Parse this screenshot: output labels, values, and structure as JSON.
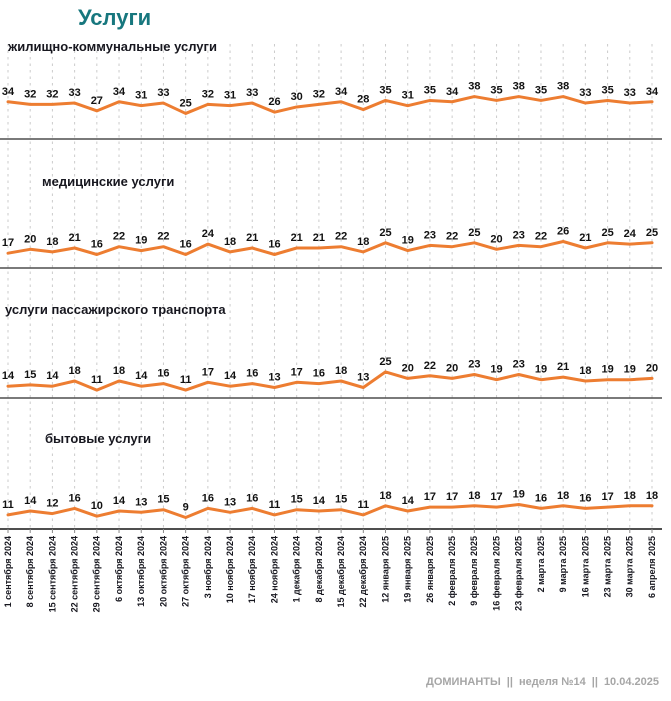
{
  "page": {
    "title": "Услуги"
  },
  "footer": {
    "brand": "ДОМИНАНТЫ",
    "sep": "||",
    "week": "неделя №14",
    "date": "10.04.2025"
  },
  "colors": {
    "accent_orange": "#ED7D31",
    "title_teal": "#17777E",
    "text_dark": "#17171F",
    "label_black": "#111111",
    "footer_gray": "#A6A6A6",
    "gridline_gray": "#CBCBCB",
    "axis_gray": "#4F4F4F",
    "tick_gray": "#8A8A8A"
  },
  "chart_data": [
    {
      "type": "line",
      "title": "жилищно-коммунальные услуги",
      "ylim": [
        25,
        38
      ],
      "grid": true,
      "legend": false,
      "categories": [
        "1 сентября 2024",
        "8 сентября 2024",
        "15 сентября 2024",
        "22 сентября 2024",
        "29 сентября 2024",
        "6 октября 2024",
        "13 октября 2024",
        "20 октября 2024",
        "27 октября 2024",
        "3 ноября 2024",
        "10 ноября 2024",
        "17 ноября 2024",
        "24 ноября 2024",
        "1 декабря 2024",
        "8 декабря 2024",
        "15 декабря 2024",
        "22 декабря 2024",
        "12 января 2025",
        "19 января 2025",
        "26 января 2025",
        "2 февраля 2025",
        "9 февраля 2025",
        "16 февраля 2025",
        "23 февраля 2025",
        "2 марта 2025",
        "9 марта 2025",
        "16 марта 2025",
        "23 марта 2025",
        "30 марта 2025",
        "6 апреля 2025"
      ],
      "values": [
        34,
        32,
        32,
        33,
        27,
        34,
        31,
        33,
        25,
        32,
        31,
        33,
        26,
        30,
        32,
        34,
        28,
        35,
        31,
        35,
        34,
        38,
        35,
        38,
        35,
        38,
        33,
        35,
        33,
        34
      ]
    },
    {
      "type": "line",
      "title": "медицинские услуги",
      "ylim": [
        16,
        26
      ],
      "grid": true,
      "legend": false,
      "categories": [
        "1 сентября 2024",
        "8 сентября 2024",
        "15 сентября 2024",
        "22 сентября 2024",
        "29 сентября 2024",
        "6 октября 2024",
        "13 октября 2024",
        "20 октября 2024",
        "27 октября 2024",
        "3 ноября 2024",
        "10 ноября 2024",
        "17 ноября 2024",
        "24 ноября 2024",
        "1 декабря 2024",
        "8 декабря 2024",
        "15 декабря 2024",
        "22 декабря 2024",
        "12 января 2025",
        "19 января 2025",
        "26 января 2025",
        "2 февраля 2025",
        "9 февраля 2025",
        "16 февраля 2025",
        "23 февраля 2025",
        "2 марта 2025",
        "9 марта 2025",
        "16 марта 2025",
        "23 марта 2025",
        "30 марта 2025",
        "6 апреля 2025"
      ],
      "values": [
        17,
        20,
        18,
        21,
        16,
        22,
        19,
        22,
        16,
        24,
        18,
        21,
        16,
        21,
        21,
        22,
        18,
        25,
        19,
        23,
        22,
        25,
        20,
        23,
        22,
        26,
        21,
        25,
        24,
        25
      ]
    },
    {
      "type": "line",
      "title": "услуги пассажирского транспорта",
      "ylim": [
        11,
        25
      ],
      "grid": true,
      "legend": false,
      "categories": [
        "1 сентября 2024",
        "8 сентября 2024",
        "15 сентября 2024",
        "22 сентября 2024",
        "29 сентября 2024",
        "6 октября 2024",
        "13 октября 2024",
        "20 октября 2024",
        "27 октября 2024",
        "3 ноября 2024",
        "10 ноября 2024",
        "17 ноября 2024",
        "24 ноября 2024",
        "1 декабря 2024",
        "8 декабря 2024",
        "15 декабря 2024",
        "22 декабря 2024",
        "12 января 2025",
        "19 января 2025",
        "26 января 2025",
        "2 февраля 2025",
        "9 февраля 2025",
        "16 февраля 2025",
        "23 февраля 2025",
        "2 марта 2025",
        "9 марта 2025",
        "16 марта 2025",
        "23 марта 2025",
        "30 марта 2025",
        "6 апреля 2025"
      ],
      "values": [
        14,
        15,
        14,
        18,
        11,
        18,
        14,
        16,
        11,
        17,
        14,
        16,
        13,
        17,
        16,
        18,
        13,
        25,
        20,
        22,
        20,
        23,
        19,
        23,
        19,
        21,
        18,
        19,
        19,
        20
      ]
    },
    {
      "type": "line",
      "title": "бытовые услуги",
      "ylim": [
        9,
        19
      ],
      "grid": true,
      "legend": false,
      "categories": [
        "1 сентября 2024",
        "8 сентября 2024",
        "15 сентября 2024",
        "22 сентября 2024",
        "29 сентября 2024",
        "6 октября 2024",
        "13 октября 2024",
        "20 октября 2024",
        "27 октября 2024",
        "3 ноября 2024",
        "10 ноября 2024",
        "17 ноября 2024",
        "24 ноября 2024",
        "1 декабря 2024",
        "8 декабря 2024",
        "15 декабря 2024",
        "22 декабря 2024",
        "12 января 2025",
        "19 января 2025",
        "26 января 2025",
        "2 февраля 2025",
        "9 февраля 2025",
        "16 февраля 2025",
        "23 февраля 2025",
        "2 марта 2025",
        "9 марта 2025",
        "16 марта 2025",
        "23 марта 2025",
        "30 марта 2025",
        "6 апреля 2025"
      ],
      "values": [
        11,
        14,
        12,
        16,
        10,
        14,
        13,
        15,
        9,
        16,
        13,
        16,
        11,
        15,
        14,
        15,
        11,
        18,
        14,
        17,
        17,
        18,
        17,
        19,
        16,
        18,
        16,
        17,
        18,
        18
      ]
    }
  ]
}
